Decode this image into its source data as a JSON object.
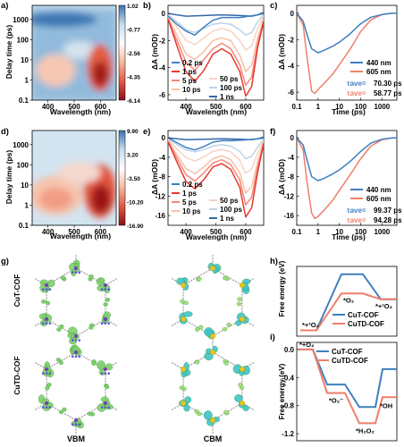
{
  "panel_letters": [
    "a)",
    "b)",
    "c)",
    "d)",
    "e)",
    "f)",
    "g)",
    "h)",
    "i)"
  ],
  "colors": {
    "blue": "#3a7ab8",
    "salmon": "#f07e6a",
    "dark_red": "#c8282a",
    "light_blue": "#9cc3e0"
  },
  "chart_data": [
    {
      "panel": "a",
      "type": "heatmap",
      "xlabel": "Wavelength (nm)",
      "ylabel": "Delay time (ps)",
      "x_ticks": [
        "400",
        "500",
        "600"
      ],
      "y_ticks": [
        "0.1",
        "1",
        "10",
        "100",
        "1000"
      ],
      "colorbar_ticks": [
        "1.02",
        "-0.77",
        "-2.56",
        "-4.35",
        "-6.14"
      ],
      "colormap": [
        "#3a74b0",
        "#c7dced",
        "#ffffff",
        "#f7b7a0",
        "#e05a43",
        "#8b0e18"
      ]
    },
    {
      "panel": "b",
      "type": "line",
      "xlabel": "Wavelength (nm)",
      "ylabel": "ΔA (mOD)",
      "x_ticks": [
        "400",
        "500",
        "600"
      ],
      "y_ticks": [
        "0",
        "-2",
        "-4",
        "-6"
      ],
      "ylim": [
        -6.4,
        0.6
      ],
      "xlim": [
        340,
        660
      ],
      "series": [
        {
          "name": "0.2 ps",
          "color": "#3f7fbf",
          "x": [
            340,
            370,
            400,
            430,
            460,
            490,
            520,
            550,
            580,
            610,
            640,
            660
          ],
          "y": [
            -0.2,
            -0.8,
            -1.3,
            -1.6,
            -1.0,
            -0.5,
            -0.3,
            -0.3,
            -0.3,
            -0.2,
            -0.1,
            0.1
          ]
        },
        {
          "name": "1 ps",
          "color": "#e63a2e",
          "x": [
            340,
            370,
            400,
            430,
            460,
            490,
            520,
            550,
            580,
            600,
            620,
            640,
            660
          ],
          "y": [
            -0.4,
            -2.4,
            -4.3,
            -5.0,
            -4.2,
            -3.0,
            -2.6,
            -3.0,
            -4.3,
            -6.1,
            -5.4,
            -2.5,
            -0.6
          ]
        },
        {
          "name": "5 ps",
          "color": "#f4877a",
          "x": [
            340,
            370,
            400,
            430,
            460,
            490,
            520,
            550,
            580,
            600,
            620,
            640,
            660
          ],
          "y": [
            -0.4,
            -2.0,
            -3.6,
            -4.2,
            -3.4,
            -2.6,
            -2.2,
            -2.6,
            -3.8,
            -5.3,
            -4.7,
            -2.2,
            -0.5
          ]
        },
        {
          "name": "10 ps",
          "color": "#f9c0a4",
          "x": [
            340,
            370,
            400,
            430,
            460,
            490,
            520,
            550,
            580,
            600,
            620,
            640,
            660
          ],
          "y": [
            -0.3,
            -1.6,
            -3.0,
            -3.4,
            -2.8,
            -2.0,
            -1.8,
            -2.0,
            -3.1,
            -4.3,
            -3.8,
            -1.8,
            -0.4
          ]
        },
        {
          "name": "50 ps",
          "color": "#f6d3c3",
          "x": [
            340,
            370,
            400,
            430,
            460,
            490,
            520,
            550,
            580,
            600,
            620,
            640,
            660
          ],
          "y": [
            -0.2,
            -1.0,
            -2.0,
            -2.3,
            -1.8,
            -1.3,
            -1.1,
            -1.3,
            -2.0,
            -2.7,
            -2.4,
            -1.1,
            -0.2
          ]
        },
        {
          "name": "100 ps",
          "color": "#bcd4e8",
          "x": [
            340,
            370,
            400,
            430,
            460,
            490,
            520,
            550,
            580,
            600,
            620,
            640,
            660
          ],
          "y": [
            -0.1,
            -0.6,
            -1.2,
            -1.4,
            -1.1,
            -0.8,
            -0.7,
            -0.8,
            -1.2,
            -1.6,
            -1.4,
            -0.6,
            -0.1
          ]
        },
        {
          "name": "1 ns",
          "color": "#3566a8",
          "x": [
            340,
            400,
            460,
            520,
            580,
            620,
            660
          ],
          "y": [
            0.0,
            -0.2,
            -0.15,
            -0.1,
            -0.15,
            -0.2,
            0.0
          ]
        }
      ]
    },
    {
      "panel": "c",
      "type": "line",
      "xlabel": "Time (ps)",
      "ylabel": "ΔA (mOD)",
      "x_ticks": [
        "0.1",
        "1",
        "10",
        "100",
        "1000"
      ],
      "y_ticks": [
        "0",
        "-2",
        "-4",
        "-6"
      ],
      "ylim": [
        -6.6,
        0.6
      ],
      "xlim": [
        0.1,
        5000
      ],
      "series": [
        {
          "name": "440 nm",
          "color": "#3f7fbf",
          "x": [
            0.1,
            0.2,
            0.3,
            0.5,
            1,
            2,
            5,
            10,
            30,
            100,
            300,
            1000,
            3000,
            5000
          ],
          "y": [
            0,
            -0.6,
            -1.6,
            -2.7,
            -3.0,
            -2.8,
            -2.5,
            -2.2,
            -1.6,
            -0.8,
            -0.3,
            -0.1,
            0,
            0
          ]
        },
        {
          "name": "605 nm",
          "color": "#f07e6a",
          "x": [
            0.1,
            0.2,
            0.3,
            0.5,
            0.7,
            1,
            2,
            5,
            10,
            30,
            100,
            300,
            1000,
            3000,
            5000
          ],
          "y": [
            0,
            -0.9,
            -3.3,
            -5.9,
            -6.1,
            -5.8,
            -5.3,
            -4.6,
            -3.9,
            -2.8,
            -1.4,
            -0.5,
            -0.1,
            0,
            0
          ]
        }
      ],
      "annotations": [
        {
          "label": "τave=",
          "value": "70.30 ps",
          "color": "#3f7fbf"
        },
        {
          "label": "τave=",
          "value": "58.77 ps",
          "color": "#f07e6a"
        }
      ]
    },
    {
      "panel": "d",
      "type": "heatmap",
      "xlabel": "Wavelength (nm)",
      "ylabel": "Delay time (ps)",
      "x_ticks": [
        "400",
        "500",
        "600"
      ],
      "y_ticks": [
        "0.1",
        "1",
        "10",
        "100",
        "1000"
      ],
      "colorbar_ticks": [
        "9.90",
        "3.20",
        "-3.50",
        "-10.20",
        "-16.90"
      ],
      "colormap": [
        "#3a74b0",
        "#c7dced",
        "#ffffff",
        "#f7b7a0",
        "#e05a43",
        "#8b0e18"
      ]
    },
    {
      "panel": "e",
      "type": "line",
      "xlabel": "Wavelength (nm)",
      "ylabel": "ΔA (mOD)",
      "x_ticks": [
        "400",
        "500",
        "600"
      ],
      "y_ticks": [
        "0",
        "-4",
        "-8",
        "-12",
        "-16"
      ],
      "ylim": [
        -18,
        1.5
      ],
      "xlim": [
        340,
        660
      ],
      "series": [
        {
          "name": "0.2 ps",
          "color": "#3f7fbf",
          "x": [
            340,
            370,
            400,
            430,
            460,
            490,
            520,
            550,
            580,
            610,
            640,
            660
          ],
          "y": [
            0,
            -1,
            -2,
            -2.5,
            -1.8,
            -0.9,
            -0.6,
            -0.6,
            -0.5,
            -0.4,
            -0.2,
            0.2
          ]
        },
        {
          "name": "1 ps",
          "color": "#e63a2e",
          "x": [
            340,
            370,
            400,
            430,
            460,
            490,
            520,
            550,
            580,
            600,
            620,
            640,
            660
          ],
          "y": [
            -0.8,
            -5,
            -9,
            -10.5,
            -8.6,
            -6,
            -5.3,
            -6.5,
            -10.2,
            -16.3,
            -14.4,
            -7,
            -1.2
          ]
        },
        {
          "name": "5 ps",
          "color": "#f4877a",
          "x": [
            340,
            370,
            400,
            430,
            460,
            490,
            520,
            550,
            580,
            600,
            620,
            640,
            660
          ],
          "y": [
            -0.7,
            -4.2,
            -7.6,
            -8.9,
            -7.2,
            -5.2,
            -4.5,
            -5.5,
            -8.7,
            -13.8,
            -12.2,
            -6,
            -1
          ]
        },
        {
          "name": "10 ps",
          "color": "#f9c0a4",
          "x": [
            340,
            370,
            400,
            430,
            460,
            490,
            520,
            550,
            580,
            600,
            620,
            640,
            660
          ],
          "y": [
            -0.6,
            -3.5,
            -6.3,
            -7.4,
            -6,
            -4.3,
            -3.7,
            -4.5,
            -7.2,
            -11.4,
            -10,
            -5,
            -0.8
          ]
        },
        {
          "name": "50 ps",
          "color": "#f6d3c3",
          "x": [
            340,
            370,
            400,
            430,
            460,
            490,
            520,
            550,
            580,
            600,
            620,
            640,
            660
          ],
          "y": [
            -0.4,
            -2.3,
            -4.1,
            -4.8,
            -3.9,
            -2.8,
            -2.4,
            -2.9,
            -4.6,
            -7.3,
            -6.4,
            -3.2,
            -0.5
          ]
        },
        {
          "name": "100 ps",
          "color": "#bcd4e8",
          "x": [
            340,
            370,
            400,
            430,
            460,
            490,
            520,
            550,
            580,
            600,
            620,
            640,
            660
          ],
          "y": [
            -0.2,
            -1.4,
            -2.5,
            -2.9,
            -2.4,
            -1.7,
            -1.4,
            -1.7,
            -2.8,
            -4.3,
            -3.8,
            -1.9,
            -0.3
          ]
        },
        {
          "name": "1 ns",
          "color": "#3566a8",
          "x": [
            340,
            400,
            460,
            520,
            580,
            620,
            660
          ],
          "y": [
            0,
            -0.4,
            -0.3,
            -0.2,
            -0.3,
            -0.4,
            0
          ]
        }
      ]
    },
    {
      "panel": "f",
      "type": "line",
      "xlabel": "Time (ps)",
      "ylabel": "ΔA (mOD)",
      "x_ticks": [
        "0.1",
        "1",
        "10",
        "100",
        "1000"
      ],
      "y_ticks": [
        "0",
        "-4",
        "-8",
        "-12",
        "-16"
      ],
      "ylim": [
        -18,
        1.5
      ],
      "xlim": [
        0.1,
        5000
      ],
      "series": [
        {
          "name": "440 nm",
          "color": "#3f7fbf",
          "x": [
            0.1,
            0.2,
            0.3,
            0.5,
            1,
            2,
            5,
            10,
            30,
            100,
            300,
            1000,
            3000,
            5000
          ],
          "y": [
            0,
            -1.5,
            -4.5,
            -8.0,
            -8.8,
            -8.3,
            -7.4,
            -6.6,
            -5.0,
            -2.8,
            -1.1,
            -0.3,
            0,
            0
          ]
        },
        {
          "name": "605 nm",
          "color": "#f07e6a",
          "x": [
            0.1,
            0.2,
            0.3,
            0.5,
            0.7,
            1,
            2,
            5,
            10,
            30,
            100,
            300,
            1000,
            3000,
            5000
          ],
          "y": [
            0,
            -2.5,
            -9,
            -15.5,
            -16.6,
            -16.2,
            -14.8,
            -12.8,
            -10.8,
            -7.8,
            -4.3,
            -1.7,
            -0.4,
            0,
            0
          ]
        }
      ],
      "annotations": [
        {
          "label": "τave=",
          "value": "99.37 ps",
          "color": "#3f7fbf"
        },
        {
          "label": "τave=",
          "value": "94.28 ps",
          "color": "#f07e6a"
        }
      ]
    },
    {
      "panel": "h",
      "type": "line",
      "ylabel": "Free energy (eV)",
      "series": [
        {
          "name": "CuT-COF",
          "color": "#3f7fbf",
          "x": [
            0,
            1,
            2,
            3
          ],
          "y": [
            0,
            1.45,
            1.45,
            0.8
          ]
        },
        {
          "name": "CuTD-COF",
          "color": "#f07e6a",
          "x": [
            0,
            1,
            2,
            3
          ],
          "y": [
            0,
            0.95,
            0.95,
            0.8
          ]
        }
      ],
      "state_labels": [
        "*+³O₂",
        "*O₂",
        "*+¹O₂"
      ]
    },
    {
      "panel": "i",
      "type": "line",
      "ylabel": "Free energy (eV)",
      "y_ticks": [
        "0.0",
        "-0.4",
        "-0.8",
        "-1.2"
      ],
      "ylim": [
        -1.3,
        0.1
      ],
      "series": [
        {
          "name": "CuT-COF",
          "color": "#3f7fbf",
          "x": [
            0,
            1,
            2,
            3
          ],
          "y": [
            0,
            -0.5,
            -0.82,
            -0.28
          ]
        },
        {
          "name": "CuTD-COF",
          "color": "#f07e6a",
          "x": [
            0,
            1,
            2,
            3
          ],
          "y": [
            0,
            -0.62,
            -1.05,
            -0.68
          ]
        }
      ],
      "state_labels": [
        "*+O₂",
        "*O₂⁻",
        "*H₂O₂",
        "*OH"
      ]
    }
  ],
  "panel_g": {
    "row_labels": [
      "CuT-COF",
      "CuTD-COF"
    ],
    "col_labels": [
      "VBM",
      "CBM"
    ]
  }
}
